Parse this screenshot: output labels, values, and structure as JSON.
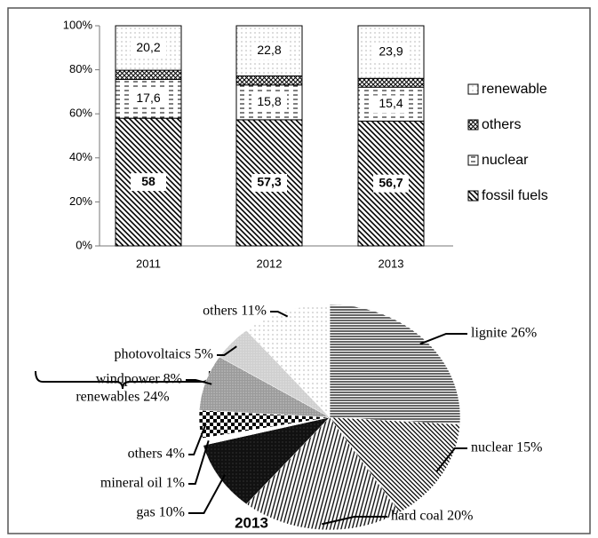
{
  "chart_data": [
    {
      "type": "bar",
      "stacked": true,
      "categories": [
        "2011",
        "2012",
        "2013"
      ],
      "series": [
        {
          "name": "fossil fuels",
          "pattern": "diagonal",
          "values": [
            58,
            57.3,
            56.7
          ],
          "value_labels": [
            "58",
            "57,3",
            "56,7"
          ]
        },
        {
          "name": "nuclear",
          "pattern": "dashes",
          "values": [
            17.6,
            15.8,
            15.4
          ],
          "value_labels": [
            "17,6",
            "15,8",
            "15,4"
          ]
        },
        {
          "name": "others",
          "pattern": "cross",
          "values": [
            4.2,
            4.1,
            4.0
          ]
        },
        {
          "name": "renewable",
          "pattern": "dots",
          "values": [
            20.2,
            22.8,
            23.9
          ],
          "value_labels": [
            "20,2",
            "22,8",
            "23,9"
          ]
        }
      ],
      "ylim": [
        0,
        100
      ],
      "yticks": [
        {
          "value": 0,
          "label": "0%"
        },
        {
          "value": 20,
          "label": "20%"
        },
        {
          "value": 40,
          "label": "40%"
        },
        {
          "value": 60,
          "label": "60%"
        },
        {
          "value": 80,
          "label": "80%"
        },
        {
          "value": 100,
          "label": "100%"
        }
      ],
      "legend": "right",
      "grid": false
    },
    {
      "type": "pie",
      "title": "2013",
      "categories": [
        "lignite",
        "nuclear",
        "hard coal",
        "gas",
        "mineral oil",
        "others",
        "windpower",
        "photovoltaics",
        "others"
      ],
      "values": [
        26,
        15,
        20,
        10,
        1,
        4,
        8,
        5,
        11
      ],
      "value_labels": [
        "lignite 26%",
        "nuclear 15%",
        "hard coal 20%",
        "gas 10%",
        "mineral oil 1%",
        "others 4%",
        "windpower 8%",
        "photovoltaics 5%",
        "others 11%"
      ],
      "patterns": [
        "hlines",
        "diagonal2",
        "vlines",
        "black",
        "white",
        "checker",
        "gray",
        "lightgray",
        "dots"
      ],
      "annotation": "renewables 24%"
    }
  ]
}
